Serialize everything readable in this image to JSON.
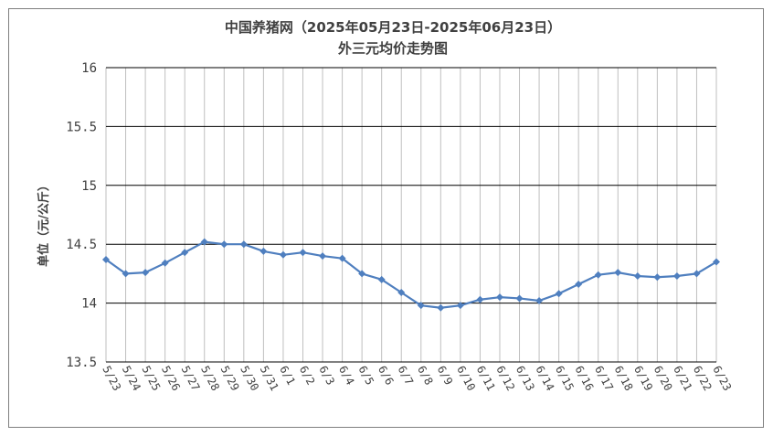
{
  "chart_data": {
    "type": "line",
    "title": "中国养猪网（2025年05月23日-2025年06月23日）",
    "subtitle": "外三元均价走势图",
    "xlabel": "",
    "ylabel": "单位（元/公斤）",
    "ylim": [
      13.5,
      16
    ],
    "yticks": [
      "16",
      "15.5",
      "15",
      "14.5",
      "14",
      "13.5"
    ],
    "ytick_values": [
      16,
      15.5,
      15,
      14.5,
      14,
      13.5
    ],
    "grid": true,
    "legend": "none",
    "colors": {
      "line": "#4f7fbf",
      "grid": "#000000",
      "vgrid": "#bfbfbf",
      "text": "#404040"
    },
    "categories": [
      "5/23",
      "5/24",
      "5/25",
      "5/26",
      "5/27",
      "5/28",
      "5/29",
      "5/30",
      "5/31",
      "6/1",
      "6/2",
      "6/3",
      "6/4",
      "6/5",
      "6/6",
      "6/7",
      "6/8",
      "6/9",
      "6/10",
      "6/11",
      "6/12",
      "6/13",
      "6/14",
      "6/15",
      "6/16",
      "6/17",
      "6/18",
      "6/19",
      "6/20",
      "6/21",
      "6/22",
      "6/23"
    ],
    "values": [
      14.37,
      14.25,
      14.26,
      14.34,
      14.43,
      14.52,
      14.5,
      14.5,
      14.44,
      14.41,
      14.43,
      14.4,
      14.38,
      14.25,
      14.2,
      14.09,
      13.98,
      13.96,
      13.98,
      14.03,
      14.05,
      14.04,
      14.02,
      14.08,
      14.16,
      14.24,
      14.26,
      14.23,
      14.22,
      14.23,
      14.25,
      14.35
    ]
  }
}
